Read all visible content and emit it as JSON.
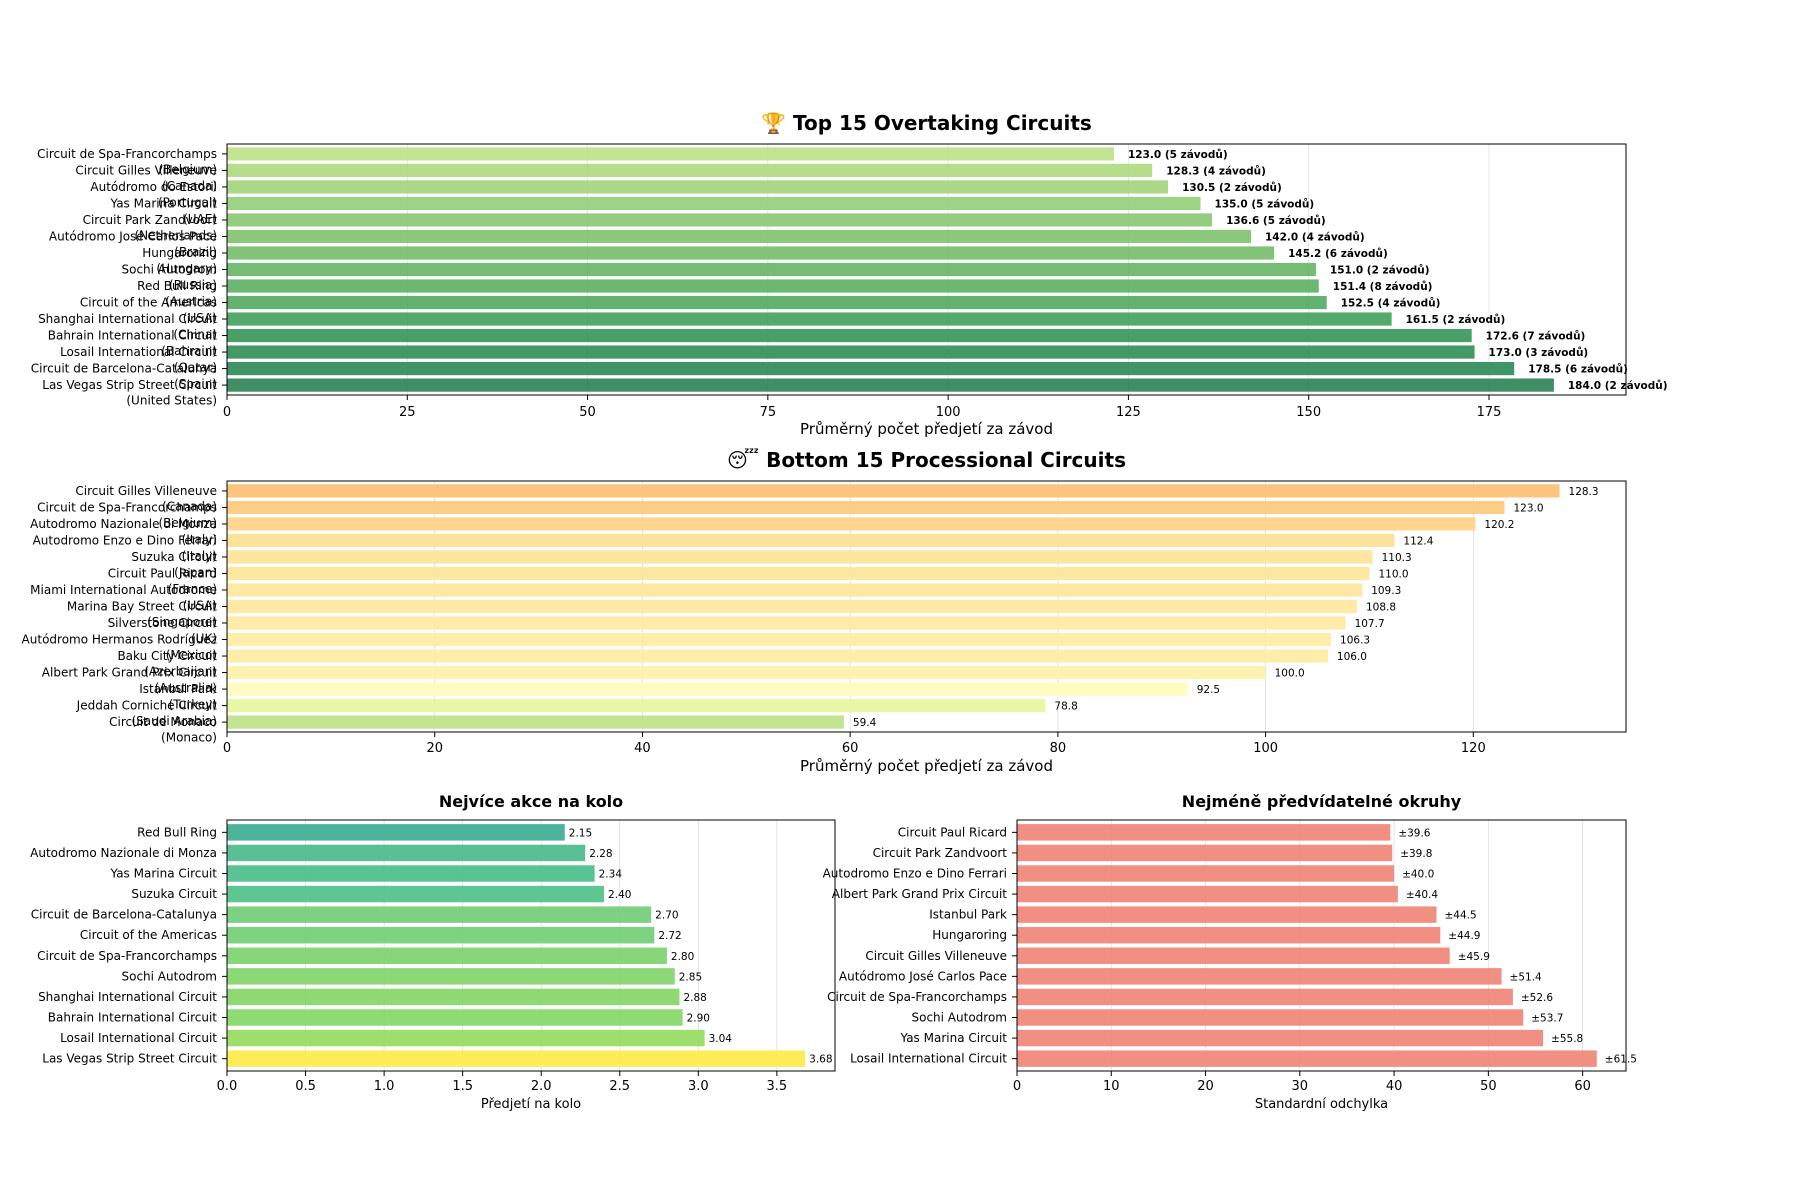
{
  "chart_data": [
    {
      "id": "top15",
      "type": "bar",
      "orientation": "horizontal",
      "title": "🏆 Top 15 Overtaking Circuits",
      "xlabel": "Průměrný počet předjetí za závod",
      "xlim": [
        0,
        194
      ],
      "xticks": [
        0,
        25,
        50,
        75,
        100,
        125,
        150,
        175
      ],
      "grid": true,
      "categories": [
        "Circuit de Spa-Francorchamps\n(Belgium)",
        "Circuit Gilles Villeneuve\n(Canada)",
        "Autódromo do Estoril\n(Portugal)",
        "Yas Marina Circuit\n(UAE)",
        "Circuit Park Zandvoort\n(Netherlands)",
        "Autódromo José Carlos Pace\n(Brazil)",
        "Hungaroring\n(Hungary)",
        "Sochi Autodrom\n(Russia)",
        "Red Bull Ring\n(Austria)",
        "Circuit of the Americas\n(USA)",
        "Shanghai International Circuit\n(China)",
        "Bahrain International Circuit\n(Bahrain)",
        "Losail International Circuit\n(Qatar)",
        "Circuit de Barcelona-Catalunya\n(Spain)",
        "Las Vegas Strip Street Circuit\n(United States)"
      ],
      "values": [
        123.0,
        128.3,
        130.5,
        135.0,
        136.6,
        142.0,
        145.2,
        151.0,
        151.4,
        152.5,
        161.5,
        172.6,
        173.0,
        178.5,
        184.0
      ],
      "data_labels": [
        "123.0 (5 závodů)",
        "128.3 (4 závodů)",
        "130.5 (2 závodů)",
        "135.0 (5 závodů)",
        "136.6 (5 závodů)",
        "142.0 (4 závodů)",
        "145.2 (6 závodů)",
        "151.0 (2 závodů)",
        "151.4 (8 závodů)",
        "152.5 (4 závodů)",
        "161.5 (2 závodů)",
        "172.6 (7 závodů)",
        "173.0 (3 závodů)",
        "178.5 (6 závodů)",
        "184.0 (2 závodů)"
      ],
      "colors": [
        "#bde184",
        "#aed97f",
        "#a2d47b",
        "#94cd77",
        "#8ac872",
        "#7fc26e",
        "#74bd6a",
        "#66b567",
        "#5cb063",
        "#52aa61",
        "#41a05c",
        "#359558",
        "#2f8e55",
        "#2b8854",
        "#2a8253"
      ]
    },
    {
      "id": "bottom15",
      "type": "bar",
      "orientation": "horizontal",
      "title": "😴 Bottom 15 Processional Circuits",
      "xlabel": "Průměrný počet předjetí za závod",
      "xlim": [
        0,
        134.7
      ],
      "xticks": [
        0,
        20,
        40,
        60,
        80,
        100,
        120
      ],
      "grid": true,
      "categories": [
        "Circuit Gilles Villeneuve\n(Canada)",
        "Circuit de Spa-Francorchamps\n(Belgium)",
        "Autodromo Nazionale di Monza\n(Italy)",
        "Autodromo Enzo e Dino Ferrari\n(Italy)",
        "Suzuka Circuit\n(Japan)",
        "Circuit Paul Ricard\n(France)",
        "Miami International Autodrome\n(USA)",
        "Marina Bay Street Circuit\n(Singapore)",
        "Silverstone Circuit\n(UK)",
        "Autódromo Hermanos Rodríguez\n(Mexico)",
        "Baku City Circuit\n(Azerbaijan)",
        "Albert Park Grand Prix Circuit\n(Australia)",
        "Istanbul Park\n(Turkey)",
        "Jeddah Corniche Circuit\n(Saudi Arabia)",
        "Circuit de Monaco\n(Monaco)"
      ],
      "values": [
        128.3,
        123.0,
        120.2,
        112.4,
        110.3,
        110.0,
        109.3,
        108.8,
        107.7,
        106.3,
        106.0,
        100.0,
        92.5,
        78.8,
        59.4
      ],
      "data_labels": [
        "128.3",
        "123.0",
        "120.2",
        "112.4",
        "110.3",
        "110.0",
        "109.3",
        "108.8",
        "107.7",
        "106.3",
        "106.0",
        "100.0",
        "92.5",
        "78.8",
        "59.4"
      ],
      "colors": [
        "#fdbe70",
        "#fdc978",
        "#fed283",
        "#fedf8f",
        "#fee396",
        "#fee596",
        "#fee699",
        "#fee89b",
        "#fee99d",
        "#feeca0",
        "#feeca1",
        "#fff1a8",
        "#fffcba",
        "#e7f59c",
        "#bde184"
      ]
    },
    {
      "id": "per_lap",
      "type": "bar",
      "orientation": "horizontal",
      "title": "Nejvíce akce na kolo",
      "xlabel": "Předjetí na kolo",
      "xlim": [
        0,
        3.87
      ],
      "xticks": [
        0.0,
        0.5,
        1.0,
        1.5,
        2.0,
        2.5,
        3.0,
        3.5
      ],
      "xtick_labels": [
        "0.0",
        "0.5",
        "1.0",
        "1.5",
        "2.0",
        "2.5",
        "3.0",
        "3.5"
      ],
      "grid": true,
      "categories": [
        "Red Bull Ring",
        "Autodromo Nazionale di Monza",
        "Yas Marina Circuit",
        "Suzuka Circuit",
        "Circuit de Barcelona-Catalunya",
        "Circuit of the Americas",
        "Circuit de Spa-Francorchamps",
        "Sochi Autodrom",
        "Shanghai International Circuit",
        "Bahrain International Circuit",
        "Losail International Circuit",
        "Las Vegas Strip Street Circuit"
      ],
      "values": [
        2.15,
        2.28,
        2.34,
        2.4,
        2.7,
        2.72,
        2.8,
        2.85,
        2.88,
        2.9,
        3.04,
        3.68
      ],
      "data_labels": [
        "2.15",
        "2.28",
        "2.34",
        "2.40",
        "2.70",
        "2.72",
        "2.80",
        "2.85",
        "2.88",
        "2.90",
        "3.04",
        "3.68"
      ],
      "colors": [
        "#3aac91",
        "#47b98a",
        "#48bc88",
        "#4cc086",
        "#6fcd73",
        "#70ce72",
        "#7ad26c",
        "#80d468",
        "#83d566",
        "#84d665",
        "#93da5a",
        "#fde945"
      ]
    },
    {
      "id": "unpredictable",
      "type": "bar",
      "orientation": "horizontal",
      "title": "Nejméně předvídatelné okruhy",
      "xlabel": "Standardní odchylka",
      "xlim": [
        0,
        64.6
      ],
      "xticks": [
        0,
        10,
        20,
        30,
        40,
        50,
        60
      ],
      "grid": true,
      "categories": [
        "Circuit Paul Ricard",
        "Circuit Park Zandvoort",
        "Autodromo Enzo e Dino Ferrari",
        "Albert Park Grand Prix Circuit",
        "Istanbul Park",
        "Hungaroring",
        "Circuit Gilles Villeneuve",
        "Autódromo José Carlos Pace",
        "Circuit de Spa-Francorchamps",
        "Sochi Autodrom",
        "Yas Marina Circuit",
        "Losail International Circuit"
      ],
      "values": [
        39.6,
        39.8,
        40.0,
        40.4,
        44.5,
        44.9,
        45.9,
        51.4,
        52.6,
        53.7,
        55.8,
        61.5
      ],
      "data_labels": [
        "±39.6",
        "±39.8",
        "±40.0",
        "±40.4",
        "±44.5",
        "±44.9",
        "±45.9",
        "±51.4",
        "±52.6",
        "±53.7",
        "±55.8",
        "±61.5"
      ],
      "colors": [
        "#ef8376",
        "#ef8376",
        "#ef8376",
        "#ef8376",
        "#ef8376",
        "#ef8376",
        "#ef8376",
        "#ef8376",
        "#ef8376",
        "#ef8376",
        "#ef8376",
        "#ef8376"
      ]
    }
  ]
}
